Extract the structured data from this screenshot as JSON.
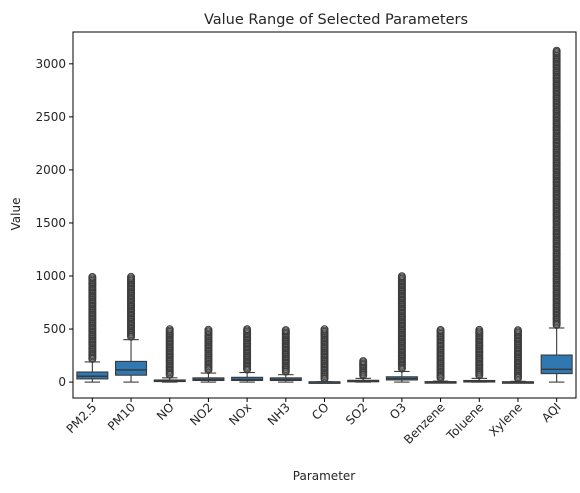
{
  "chart_data": {
    "type": "boxplot",
    "title": "Value Range of Selected Parameters",
    "xlabel": "Parameter",
    "ylabel": "Value",
    "ylim": [
      -150,
      3300
    ],
    "yticks": [
      0,
      500,
      1000,
      1500,
      2000,
      2500,
      3000
    ],
    "grid": false,
    "colors": {
      "box": "#2f78b1",
      "line": "#3a3a3a",
      "flier": "#3d3d3d"
    },
    "categories": [
      "PM2.5",
      "PM10",
      "NO",
      "NO2",
      "NOx",
      "NH3",
      "CO",
      "SO2",
      "O3",
      "Benzene",
      "Toluene",
      "Xylene",
      "AQI"
    ],
    "boxes": [
      {
        "name": "PM2.5",
        "whislo": 0,
        "q1": 30,
        "med": 55,
        "q3": 95,
        "whishi": 190,
        "flier_range": [
          190,
          1000
        ]
      },
      {
        "name": "PM10",
        "whislo": 0,
        "q1": 65,
        "med": 115,
        "q3": 195,
        "whishi": 400,
        "flier_range": [
          400,
          1000
        ]
      },
      {
        "name": "NO",
        "whislo": 0,
        "q1": 5,
        "med": 10,
        "q3": 20,
        "whishi": 40,
        "flier_range": [
          40,
          500
        ]
      },
      {
        "name": "NO2",
        "whislo": 0,
        "q1": 15,
        "med": 25,
        "q3": 40,
        "whishi": 85,
        "flier_range": [
          85,
          500
        ]
      },
      {
        "name": "NOx",
        "whislo": 0,
        "q1": 15,
        "med": 25,
        "q3": 45,
        "whishi": 90,
        "flier_range": [
          90,
          500
        ]
      },
      {
        "name": "NH3",
        "whislo": 0,
        "q1": 15,
        "med": 25,
        "q3": 40,
        "whishi": 70,
        "flier_range": [
          70,
          500
        ]
      },
      {
        "name": "CO",
        "whislo": 0,
        "q1": 0,
        "med": 1,
        "q3": 2,
        "whishi": 4,
        "flier_range": [
          4,
          500
        ]
      },
      {
        "name": "SO2",
        "whislo": 0,
        "q1": 6,
        "med": 10,
        "q3": 17,
        "whishi": 35,
        "flier_range": [
          35,
          200
        ]
      },
      {
        "name": "O3",
        "whislo": 0,
        "q1": 20,
        "med": 33,
        "q3": 50,
        "whishi": 100,
        "flier_range": [
          100,
          1000
        ]
      },
      {
        "name": "Benzene",
        "whislo": 0,
        "q1": 0,
        "med": 1,
        "q3": 4,
        "whishi": 9,
        "flier_range": [
          9,
          500
        ]
      },
      {
        "name": "Toluene",
        "whislo": 0,
        "q1": 2,
        "med": 6,
        "q3": 15,
        "whishi": 35,
        "flier_range": [
          35,
          500
        ]
      },
      {
        "name": "Xylene",
        "whislo": 0,
        "q1": 0,
        "med": 0,
        "q3": 3,
        "whishi": 7,
        "flier_range": [
          7,
          500
        ]
      },
      {
        "name": "AQI",
        "whislo": 0,
        "q1": 80,
        "med": 120,
        "q3": 255,
        "whishi": 510,
        "flier_range": [
          510,
          3130
        ]
      }
    ]
  }
}
